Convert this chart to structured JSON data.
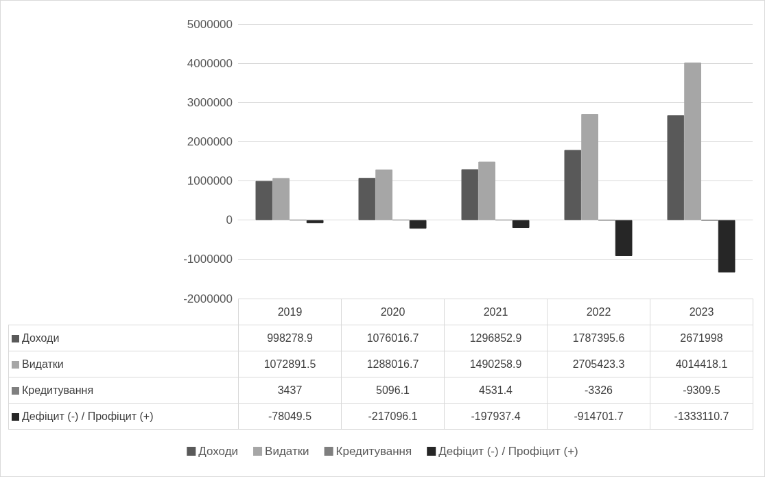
{
  "chart_data": {
    "type": "bar",
    "categories": [
      "2019",
      "2020",
      "2021",
      "2022",
      "2023"
    ],
    "series": [
      {
        "name": "Доходи",
        "color": "#595959",
        "values": [
          998278.9,
          1076016.7,
          1296852.9,
          1787395.6,
          2671998
        ]
      },
      {
        "name": "Видатки",
        "color": "#a6a6a6",
        "values": [
          1072891.5,
          1288016.7,
          1490258.9,
          2705423.3,
          4014418.1
        ]
      },
      {
        "name": "Кредитування",
        "color": "#7f7f7f",
        "values": [
          3437,
          5096.1,
          4531.4,
          -3326,
          -9309.5
        ]
      },
      {
        "name": "Дефіцит (-) / Профіцит (+)",
        "color": "#262626",
        "values": [
          -78049.5,
          -217096.1,
          -197937.4,
          -914701.7,
          -1333110.7
        ]
      }
    ],
    "ylim": [
      -2000000,
      5000000
    ],
    "yticks": [
      -2000000,
      -1000000,
      0,
      1000000,
      2000000,
      3000000,
      4000000,
      5000000
    ],
    "grid": "y",
    "legend": "bottom",
    "data_labels": true
  }
}
